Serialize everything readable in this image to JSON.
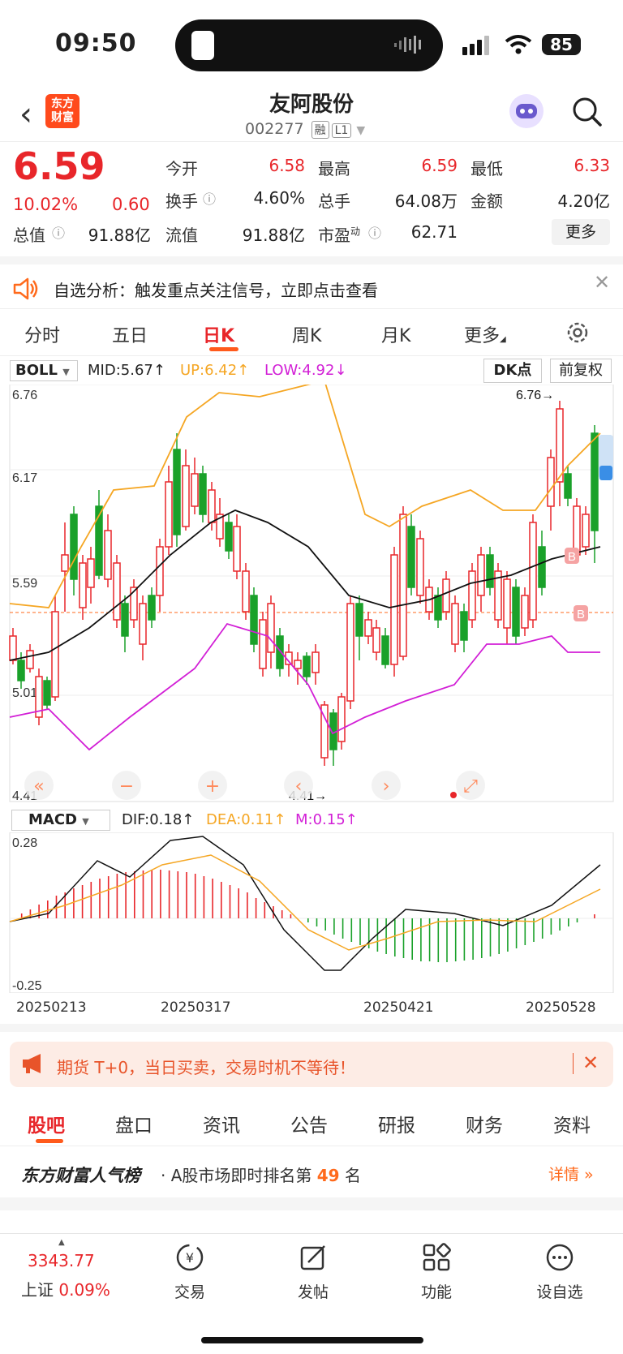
{
  "status": {
    "time": "09:50",
    "battery": "85"
  },
  "header": {
    "title": "友阿股份",
    "code": "002277",
    "tag1": "融",
    "tag2": "L1",
    "logo_line1": "东方",
    "logo_line2": "财富"
  },
  "quote": {
    "price": "6.59",
    "change_pct": "10.02%",
    "change": "0.60",
    "open_label": "今开",
    "open": "6.58",
    "high_label": "最高",
    "high": "6.59",
    "low_label": "最低",
    "low": "6.33",
    "turnover_label": "换手",
    "turnover": "4.60%",
    "volume_label": "总手",
    "volume": "64.08万",
    "amount_label": "金额",
    "amount": "4.20亿",
    "mcap_label": "总值",
    "mcap": "91.88亿",
    "float_label": "流值",
    "float": "91.88亿",
    "pe_label": "市盈",
    "pe_sup": "动",
    "pe": "62.71",
    "more": "更多"
  },
  "notice": {
    "text": "自选分析：触发重点关注信号，立即点击查看"
  },
  "ktabs": [
    "分时",
    "五日",
    "日K",
    "周K",
    "月K",
    "更多"
  ],
  "boll": {
    "name": "BOLL",
    "mid": "MID:5.67↑",
    "up": "UP:6.42↑",
    "low": "LOW:4.92↓",
    "dk": "DK点",
    "fq": "前复权"
  },
  "kaxis": {
    "y1": "6.76",
    "y2": "6.17",
    "y3": "5.59",
    "y4": "5.01",
    "y5": "4.41",
    "max_mark": "6.76→",
    "min_mark": "4.41→"
  },
  "macd": {
    "name": "MACD",
    "dif": "DIF:0.18↑",
    "dea": "DEA:0.11↑",
    "m": "M:0.15↑",
    "top": "0.28",
    "bottom": "-0.25"
  },
  "dates": [
    "20250213",
    "20250317",
    "20250421",
    "20250528"
  ],
  "ad": {
    "text": "期货 T+0，当日买卖，交易时机不等待！"
  },
  "btabs": [
    "股吧",
    "盘口",
    "资讯",
    "公告",
    "研报",
    "财务",
    "资料"
  ],
  "rank": {
    "title": "东方财富人气榜",
    "text_pre": "· A股市场即时排名第",
    "num": "49",
    "text_post": "名",
    "detail": "详情 »"
  },
  "bottom": {
    "index_value": "3343.77",
    "index_name": "上证",
    "index_pct": "0.09%",
    "nav": [
      "交易",
      "发帖",
      "功能",
      "设自选"
    ]
  },
  "colors": {
    "up": "#e8262a",
    "down": "#1aa12a",
    "accent": "#ff5a1c",
    "boll_up": "#f5a623",
    "boll_low": "#d21fd6"
  }
}
